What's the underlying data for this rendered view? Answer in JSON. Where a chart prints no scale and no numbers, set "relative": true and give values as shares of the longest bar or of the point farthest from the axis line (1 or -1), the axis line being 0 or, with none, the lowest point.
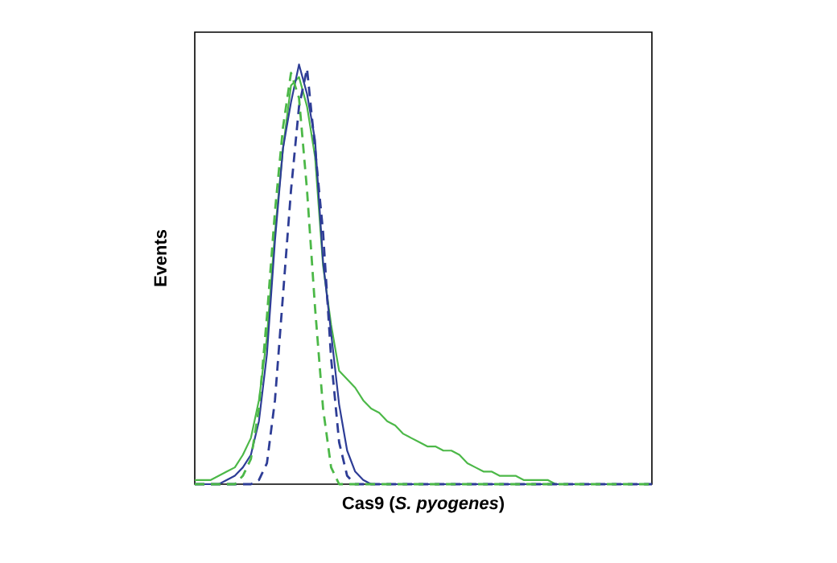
{
  "chart_data": {
    "type": "line",
    "relative": true,
    "xlabel": "Cas9 (*S. pyogenes*)",
    "ylabel": "Events",
    "marker": "none",
    "categories": [
      null,
      null,
      null,
      null,
      null,
      null,
      null,
      null,
      null,
      null,
      null,
      null,
      null,
      null,
      null,
      null,
      null,
      null,
      null,
      null,
      null,
      null,
      null,
      null,
      null,
      null,
      null,
      null,
      null,
      null,
      null,
      null,
      null,
      null,
      null,
      null,
      null,
      null,
      null,
      null,
      null,
      null,
      null,
      null,
      null,
      null,
      null,
      null,
      null,
      null,
      null,
      null,
      null,
      null,
      null,
      null,
      null,
      null
    ],
    "series": [
      {
        "color": "#4cb848",
        "line_style": "solid",
        "values": [
          0.01,
          0.01,
          0.01,
          0.02,
          0.03,
          0.04,
          0.07,
          0.11,
          0.2,
          0.35,
          0.6,
          0.8,
          0.95,
          0.97,
          0.9,
          0.78,
          0.52,
          0.38,
          0.27,
          0.25,
          0.23,
          0.2,
          0.18,
          0.17,
          0.15,
          0.14,
          0.12,
          0.11,
          0.1,
          0.09,
          0.09,
          0.08,
          0.08,
          0.07,
          0.05,
          0.04,
          0.03,
          0.03,
          0.02,
          0.02,
          0.02,
          0.01,
          0.01,
          0.01,
          0.01,
          0,
          0,
          0,
          0,
          0,
          0,
          0,
          0,
          0,
          0,
          0,
          0,
          0
        ]
      },
      {
        "color": "#2e3d96",
        "line_style": "solid",
        "values": [
          0,
          0,
          0,
          0,
          0.01,
          0.02,
          0.04,
          0.07,
          0.15,
          0.31,
          0.58,
          0.8,
          0.91,
          1.0,
          0.93,
          0.82,
          0.53,
          0.36,
          0.19,
          0.08,
          0.03,
          0.01,
          0,
          0,
          0,
          0,
          0,
          0,
          0,
          0,
          0,
          0,
          0,
          0,
          0,
          0,
          0,
          0,
          0,
          0,
          0,
          0,
          0,
          0,
          0,
          0,
          0,
          0,
          0,
          0,
          0,
          0,
          0,
          0,
          0,
          0,
          0,
          0
        ]
      },
      {
        "color": "#2e3d96",
        "line_style": "dashed",
        "values": [
          0,
          0,
          0,
          0,
          0,
          0,
          0,
          0,
          0.01,
          0.05,
          0.2,
          0.45,
          0.7,
          0.9,
          0.99,
          0.8,
          0.6,
          0.3,
          0.1,
          0.02,
          0,
          0,
          0,
          0,
          0,
          0,
          0,
          0,
          0,
          0,
          0,
          0,
          0,
          0,
          0,
          0,
          0,
          0,
          0,
          0,
          0,
          0,
          0,
          0,
          0,
          0,
          0,
          0,
          0,
          0,
          0,
          0,
          0,
          0,
          0,
          0,
          0,
          0
        ]
      },
      {
        "color": "#4cb848",
        "line_style": "dashed",
        "values": [
          0,
          0,
          0,
          0,
          0,
          0,
          0.02,
          0.06,
          0.18,
          0.4,
          0.65,
          0.85,
          0.98,
          0.92,
          0.7,
          0.42,
          0.18,
          0.04,
          0,
          0,
          0,
          0,
          0,
          0,
          0,
          0,
          0,
          0,
          0,
          0,
          0,
          0,
          0,
          0,
          0,
          0,
          0,
          0,
          0,
          0,
          0,
          0,
          0,
          0,
          0,
          0,
          0,
          0,
          0,
          0,
          0,
          0,
          0,
          0,
          0,
          0,
          0,
          0
        ]
      }
    ]
  }
}
